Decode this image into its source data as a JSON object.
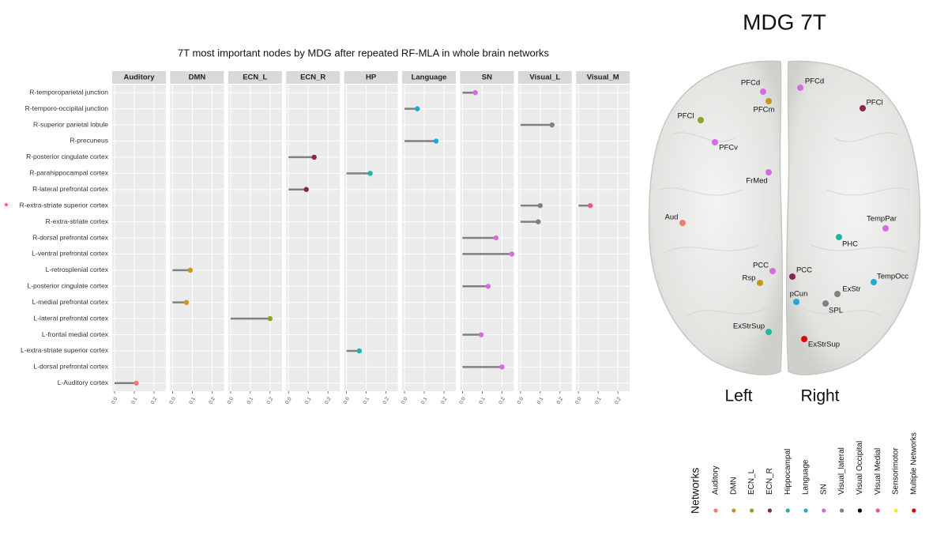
{
  "chart_data": {
    "type": "lollipop-facets",
    "title": "7T most important nodes by MDG after repeated RF-MLA in whole brain networks",
    "categories": [
      "R-temporoparietal junction",
      "R-temporo-occipital junction",
      "R-superior parietal lobule",
      "R-precuneus",
      "R-posterior cingulate cortex",
      "R-parahippocampal cortex",
      "R-lateral prefrontal cortex",
      "R-extra-striate superior cortex",
      "R-extra-striate cortex",
      "R-dorsal prefrontal cortex",
      "L-ventral prefrontal cortex",
      "L-retrosplenial cortex",
      "L-posterior cingulate cortex",
      "L-medial prefrontal cortex",
      "L-lateral prefrontal cortex",
      "L-frontal medial cortex",
      "L-extra-striate superior cortex",
      "L-dorsal prefrontal cortex",
      "L-Auditory cortex"
    ],
    "stem_color": "#808080",
    "series": [
      {
        "name": "Auditory",
        "color": "#f07d6e",
        "values": [
          null,
          null,
          null,
          null,
          null,
          null,
          null,
          null,
          null,
          null,
          null,
          null,
          null,
          null,
          null,
          null,
          null,
          null,
          0.11
        ]
      },
      {
        "name": "DMN",
        "color": "#c8961e",
        "values": [
          null,
          null,
          null,
          null,
          null,
          null,
          null,
          null,
          null,
          null,
          null,
          0.09,
          null,
          0.07,
          null,
          null,
          null,
          null,
          null
        ]
      },
      {
        "name": "ECN_L",
        "color": "#8fa32a",
        "values": [
          null,
          null,
          null,
          null,
          null,
          null,
          null,
          null,
          null,
          null,
          null,
          null,
          null,
          null,
          0.2,
          null,
          null,
          null,
          null
        ]
      },
      {
        "name": "ECN_R",
        "color": "#8b2252",
        "values": [
          null,
          null,
          null,
          null,
          0.13,
          null,
          0.09,
          null,
          null,
          null,
          null,
          null,
          null,
          null,
          null,
          null,
          null,
          null,
          null
        ]
      },
      {
        "name": "HP",
        "color": "#1fb5a0",
        "values": [
          null,
          null,
          null,
          null,
          null,
          0.12,
          null,
          null,
          null,
          null,
          null,
          null,
          null,
          null,
          null,
          null,
          0.065,
          null,
          null
        ]
      },
      {
        "name": "Language",
        "color": "#1ea8d8",
        "values": [
          null,
          0.065,
          null,
          0.16,
          null,
          null,
          null,
          null,
          null,
          null,
          null,
          null,
          null,
          null,
          null,
          null,
          null,
          null,
          null
        ]
      },
      {
        "name": "SN",
        "color": "#d66be0",
        "values": [
          0.065,
          null,
          null,
          null,
          null,
          null,
          null,
          null,
          null,
          0.17,
          0.25,
          null,
          0.13,
          null,
          null,
          0.095,
          null,
          0.2,
          null
        ]
      },
      {
        "name": "Visual_L",
        "color": "#808080",
        "values": [
          null,
          null,
          0.16,
          null,
          null,
          null,
          null,
          0.1,
          0.09,
          null,
          null,
          null,
          null,
          null,
          null,
          null,
          null,
          null,
          null
        ]
      },
      {
        "name": "Visual_M",
        "color": "#e8559a",
        "values": [
          null,
          null,
          null,
          null,
          null,
          null,
          null,
          0.06,
          null,
          null,
          null,
          null,
          null,
          null,
          null,
          null,
          null,
          null,
          null
        ]
      }
    ],
    "xlim": [
      -0.012,
      0.26
    ],
    "xticks": [
      {
        "value": 0,
        "label": "0.0"
      },
      {
        "value": 0.1,
        "label": "0.1"
      },
      {
        "value": 0.2,
        "label": "0.2"
      }
    ],
    "grid": true,
    "annotations": [
      {
        "text": "*",
        "color": "#e02020"
      }
    ]
  },
  "brain": {
    "title": "MDG 7T",
    "left_label": "Left",
    "right_label": "Right",
    "nodes": [
      {
        "label": "PFCd",
        "color": "#d66be0"
      },
      {
        "label": "PFCd",
        "color": "#d66be0"
      },
      {
        "label": "PFCm",
        "color": "#c8961e"
      },
      {
        "label": "PFCl",
        "color": "#8fa32a"
      },
      {
        "label": "PFCl",
        "color": "#8b2252"
      },
      {
        "label": "PFCv",
        "color": "#d66be0"
      },
      {
        "label": "FrMed",
        "color": "#d66be0"
      },
      {
        "label": "Aud",
        "color": "#f07d6e"
      },
      {
        "label": "TempPar",
        "color": "#d66be0"
      },
      {
        "label": "PHC",
        "color": "#1fb5a0"
      },
      {
        "label": "PCC",
        "color": "#d66be0"
      },
      {
        "label": "PCC",
        "color": "#8b2252"
      },
      {
        "label": "Rsp",
        "color": "#c8961e"
      },
      {
        "label": "TempOcc",
        "color": "#1ea8d8"
      },
      {
        "label": "ExStr",
        "color": "#808080"
      },
      {
        "label": "pCun",
        "color": "#1ea8d8"
      },
      {
        "label": "SPL",
        "color": "#808080"
      },
      {
        "label": "ExStrSup",
        "color": "#1fb5a0"
      },
      {
        "label": "ExStrSup",
        "color": "#e00000"
      }
    ]
  },
  "legend": {
    "title": "Networks",
    "items": [
      {
        "label": "Auditory",
        "color": "#f07d6e"
      },
      {
        "label": "DMN",
        "color": "#c8961e"
      },
      {
        "label": "ECN_L",
        "color": "#8fa32a"
      },
      {
        "label": "ECN_R",
        "color": "#8b2252"
      },
      {
        "label": "Hippocampal",
        "color": "#1fb5a0"
      },
      {
        "label": "Language",
        "color": "#1ea8d8"
      },
      {
        "label": "SN",
        "color": "#d66be0"
      },
      {
        "label": "Visual_lateral",
        "color": "#808080"
      },
      {
        "label": "Visual Occipital",
        "color": "#000000"
      },
      {
        "label": "Visual Medial",
        "color": "#e8559a"
      },
      {
        "label": "Sensorimotor",
        "color": "#f5f01e"
      },
      {
        "label": "Multiple Networks",
        "color": "#e00000"
      }
    ]
  }
}
